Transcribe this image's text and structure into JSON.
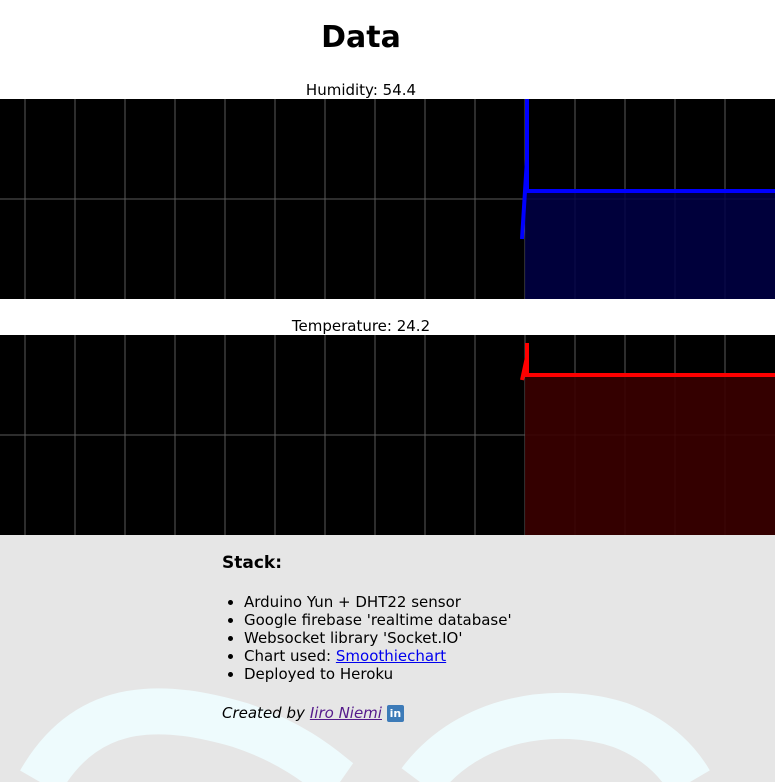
{
  "page": {
    "title": "Data"
  },
  "charts": [
    {
      "label": "Humidity: 54.4",
      "chart_data": {
        "type": "area",
        "series": [
          {
            "values": [
              54.4
            ]
          }
        ],
        "grid": true,
        "colors": {
          "line": "#0000ff",
          "fill": "#000045"
        }
      }
    },
    {
      "label": "Temperature: 24.2",
      "chart_data": {
        "type": "area",
        "series": [
          {
            "values": [
              24.2
            ]
          }
        ],
        "grid": true,
        "colors": {
          "line": "#ff0000",
          "fill": "#3a0000"
        }
      }
    }
  ],
  "stack": {
    "heading": "Stack:",
    "items": [
      "Arduino Yun + DHT22 sensor",
      "Google firebase 'realtime database'",
      "Websocket library 'Socket.IO'"
    ],
    "chart_prefix": "Chart used: ",
    "chart_link": "Smoothiechart",
    "deploy": "Deployed to Heroku"
  },
  "credit": {
    "prefix": "Created by",
    "author": "Iiro Niemi",
    "icon": "linkedin-icon"
  }
}
